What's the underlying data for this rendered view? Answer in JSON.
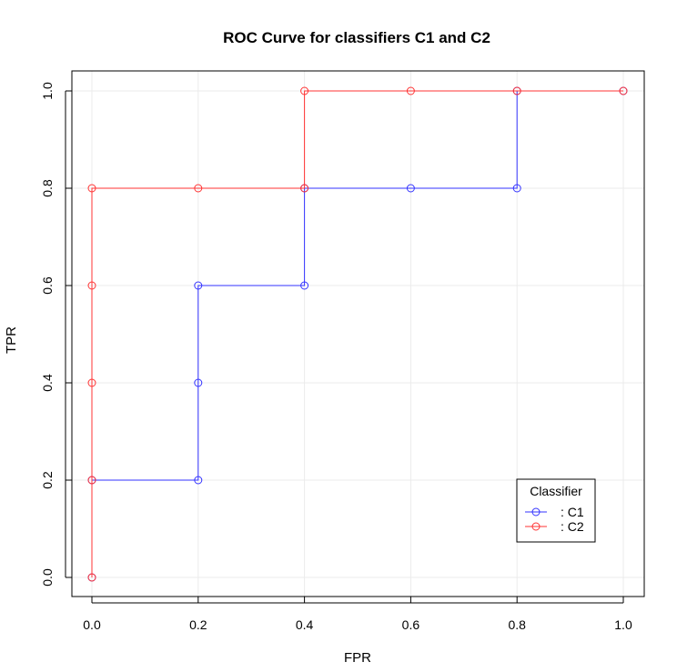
{
  "chart_data": {
    "type": "line",
    "title": "ROC Curve for classifiers C1 and C2",
    "xlabel": "FPR",
    "ylabel": "TPR",
    "xlim": [
      0,
      1
    ],
    "ylim": [
      0,
      1
    ],
    "x_ticks": [
      "0.0",
      "0.2",
      "0.4",
      "0.6",
      "0.8",
      "1.0"
    ],
    "y_ticks": [
      "0.0",
      "0.2",
      "0.4",
      "0.6",
      "0.8",
      "1.0"
    ],
    "grid": true,
    "step": "vertical-then-horizontal",
    "legend": {
      "title": "Classifier",
      "position": "bottom-right"
    },
    "series": [
      {
        "name": ": C1",
        "color": "#3333ff",
        "x": [
          0.0,
          0.0,
          0.2,
          0.2,
          0.2,
          0.4,
          0.4,
          0.6,
          0.8,
          0.8,
          1.0
        ],
        "y": [
          0.0,
          0.2,
          0.2,
          0.4,
          0.6,
          0.6,
          0.8,
          0.8,
          0.8,
          1.0,
          1.0
        ]
      },
      {
        "name": ": C2",
        "color": "#ff3333",
        "x": [
          0.0,
          0.0,
          0.0,
          0.0,
          0.0,
          0.2,
          0.4,
          0.4,
          0.6,
          0.8,
          1.0
        ],
        "y": [
          0.0,
          0.2,
          0.4,
          0.6,
          0.8,
          0.8,
          0.8,
          1.0,
          1.0,
          1.0,
          1.0
        ]
      }
    ]
  }
}
